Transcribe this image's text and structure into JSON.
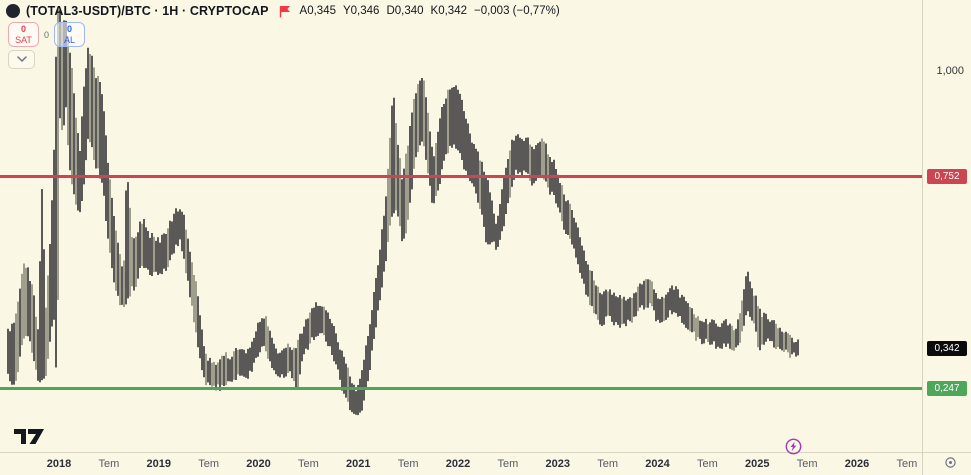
{
  "header": {
    "title": "(TOTAL3-USDT)/BTC · 1H · CRYPTOCAP",
    "logo_icon": "symbol-logo-circle",
    "flag_icon": "red-flag",
    "ohlc": [
      {
        "label": "A",
        "value": "0,345"
      },
      {
        "label": "Y",
        "value": "0,346"
      },
      {
        "label": "D",
        "value": "0,340"
      },
      {
        "label": "K",
        "value": "0,342"
      }
    ],
    "change": "−0,003 (−0,77%)"
  },
  "order_panel": {
    "sell_count": "0",
    "sell_label": "SAT",
    "spread": "0",
    "buy_count": "0",
    "buy_label": "AL",
    "collapse_icon": "chevron-down"
  },
  "price_scale": {
    "tick_label": "1,000"
  },
  "footer_icons": {
    "tradingview_logo": "tradingview-logo",
    "lightning": "lightning-bolt-circle",
    "corner": "scale-settings-target"
  },
  "colors": {
    "background": "#faf7e4",
    "candle_dark": "#16161c",
    "candle_light": "#70705f",
    "level_red": "#cb4650",
    "level_green": "#4da65a",
    "last_price_bg": "#0b0b0e",
    "sell_red": "#e8434f",
    "buy_blue": "#2962ff",
    "accent_purple": "#a03bb5",
    "flag_red": "#f23645"
  },
  "chart_data": {
    "type": "candlestick",
    "symbol": "(TOTAL3-USDT)/BTC",
    "interval": "1H",
    "exchange": "CRYPTOCAP",
    "ohlc_current": {
      "open": 0.345,
      "high": 0.346,
      "low": 0.34,
      "close": 0.342,
      "change": -0.003,
      "change_pct": "-0.77%"
    },
    "levels": [
      {
        "label": "0,752",
        "price": 0.752,
        "color_key": "level_red",
        "kind": "resistance"
      },
      {
        "label": "0,247",
        "price": 0.247,
        "color_key": "level_green",
        "kind": "support"
      }
    ],
    "last_price": {
      "label": "0,342",
      "price": 0.342
    },
    "y_axis": {
      "tick_labels": [
        {
          "label": "1,000",
          "value": 1.0
        }
      ],
      "approx_visible_range": [
        0.18,
        1.17
      ],
      "grid": false
    },
    "x_axis": {
      "unit": "decimal_year",
      "ticks": [
        {
          "label": "2018",
          "t": 2018.0,
          "major": true
        },
        {
          "label": "Tem",
          "t": 2018.5,
          "major": false
        },
        {
          "label": "2019",
          "t": 2019.0,
          "major": true
        },
        {
          "label": "Tem",
          "t": 2019.5,
          "major": false
        },
        {
          "label": "2020",
          "t": 2020.0,
          "major": true
        },
        {
          "label": "Tem",
          "t": 2020.5,
          "major": false
        },
        {
          "label": "2021",
          "t": 2021.0,
          "major": true
        },
        {
          "label": "Tem",
          "t": 2021.5,
          "major": false
        },
        {
          "label": "2022",
          "t": 2022.0,
          "major": true
        },
        {
          "label": "Tem",
          "t": 2022.5,
          "major": false
        },
        {
          "label": "2023",
          "t": 2023.0,
          "major": true
        },
        {
          "label": "Tem",
          "t": 2023.5,
          "major": false
        },
        {
          "label": "2024",
          "t": 2024.0,
          "major": true
        },
        {
          "label": "Tem",
          "t": 2024.5,
          "major": false
        },
        {
          "label": "2025",
          "t": 2025.0,
          "major": true
        },
        {
          "label": "Tem",
          "t": 2025.5,
          "major": false
        },
        {
          "label": "2026",
          "t": 2026.0,
          "major": true
        },
        {
          "label": "Tem",
          "t": 2026.5,
          "major": false
        }
      ]
    },
    "series": [
      {
        "name": "TOTAL3-USDT/BTC",
        "points_format": "[decimal_year, high_envelope, low_envelope]",
        "points": [
          [
            2017.49,
            0.386,
            0.279
          ],
          [
            2017.54,
            0.398,
            0.248
          ],
          [
            2017.59,
            0.457,
            0.291
          ],
          [
            2017.64,
            0.54,
            0.362
          ],
          [
            2017.69,
            0.529,
            0.374
          ],
          [
            2017.74,
            0.481,
            0.326
          ],
          [
            2017.79,
            0.386,
            0.26
          ],
          [
            2017.83,
            0.724,
            0.267
          ],
          [
            2017.87,
            0.433,
            0.279
          ],
          [
            2017.91,
            0.588,
            0.362
          ],
          [
            2017.95,
            0.814,
            0.41
          ],
          [
            2017.98,
            1.148,
            0.243
          ],
          [
            2018.01,
            1.143,
            0.886
          ],
          [
            2018.04,
            1.112,
            0.838
          ],
          [
            2018.07,
            1.124,
            0.921
          ],
          [
            2018.1,
            1.064,
            0.779
          ],
          [
            2018.13,
            1.005,
            0.731
          ],
          [
            2018.17,
            0.886,
            0.683
          ],
          [
            2018.21,
            0.814,
            0.66
          ],
          [
            2018.25,
            0.957,
            0.731
          ],
          [
            2018.29,
            1.057,
            0.838
          ],
          [
            2018.33,
            1.04,
            0.814
          ],
          [
            2018.37,
            0.993,
            0.779
          ],
          [
            2018.41,
            0.974,
            0.755
          ],
          [
            2018.45,
            0.91,
            0.707
          ],
          [
            2018.49,
            0.79,
            0.6
          ],
          [
            2018.53,
            0.695,
            0.529
          ],
          [
            2018.57,
            0.624,
            0.481
          ],
          [
            2018.61,
            0.564,
            0.445
          ],
          [
            2018.65,
            0.529,
            0.433
          ],
          [
            2018.68,
            0.786,
            0.457
          ],
          [
            2018.73,
            0.612,
            0.481
          ],
          [
            2018.77,
            0.6,
            0.493
          ],
          [
            2018.81,
            0.643,
            0.529
          ],
          [
            2018.86,
            0.643,
            0.533
          ],
          [
            2018.91,
            0.612,
            0.517
          ],
          [
            2018.96,
            0.607,
            0.524
          ],
          [
            2019.01,
            0.6,
            0.517
          ],
          [
            2019.06,
            0.612,
            0.529
          ],
          [
            2019.11,
            0.636,
            0.548
          ],
          [
            2019.16,
            0.667,
            0.576
          ],
          [
            2019.22,
            0.683,
            0.6
          ],
          [
            2019.27,
            0.636,
            0.529
          ],
          [
            2019.32,
            0.564,
            0.457
          ],
          [
            2019.37,
            0.505,
            0.386
          ],
          [
            2019.42,
            0.41,
            0.302
          ],
          [
            2019.47,
            0.326,
            0.262
          ],
          [
            2019.52,
            0.314,
            0.255
          ],
          [
            2019.57,
            0.31,
            0.248
          ],
          [
            2019.62,
            0.319,
            0.248
          ],
          [
            2019.67,
            0.326,
            0.26
          ],
          [
            2019.72,
            0.321,
            0.257
          ],
          [
            2019.77,
            0.338,
            0.271
          ],
          [
            2019.82,
            0.343,
            0.279
          ],
          [
            2019.87,
            0.333,
            0.267
          ],
          [
            2019.92,
            0.35,
            0.286
          ],
          [
            2019.97,
            0.386,
            0.31
          ],
          [
            2020.03,
            0.414,
            0.338
          ],
          [
            2020.06,
            0.421,
            0.35
          ],
          [
            2020.11,
            0.386,
            0.314
          ],
          [
            2020.16,
            0.35,
            0.286
          ],
          [
            2020.2,
            0.326,
            0.271
          ],
          [
            2020.25,
            0.338,
            0.279
          ],
          [
            2020.3,
            0.35,
            0.286
          ],
          [
            2020.35,
            0.343,
            0.267
          ],
          [
            2020.39,
            0.355,
            0.243
          ],
          [
            2020.44,
            0.386,
            0.31
          ],
          [
            2020.49,
            0.414,
            0.343
          ],
          [
            2020.54,
            0.438,
            0.362
          ],
          [
            2020.6,
            0.45,
            0.374
          ],
          [
            2020.65,
            0.445,
            0.369
          ],
          [
            2020.7,
            0.429,
            0.35
          ],
          [
            2020.75,
            0.398,
            0.319
          ],
          [
            2020.8,
            0.355,
            0.286
          ],
          [
            2020.85,
            0.326,
            0.231
          ],
          [
            2020.9,
            0.29,
            0.207
          ],
          [
            2020.95,
            0.255,
            0.183
          ],
          [
            2020.99,
            0.243,
            0.179
          ],
          [
            2021.03,
            0.279,
            0.193
          ],
          [
            2021.07,
            0.338,
            0.231
          ],
          [
            2021.12,
            0.41,
            0.302
          ],
          [
            2021.17,
            0.493,
            0.386
          ],
          [
            2021.22,
            0.588,
            0.457
          ],
          [
            2021.27,
            0.671,
            0.54
          ],
          [
            2021.31,
            0.814,
            0.624
          ],
          [
            2021.35,
            0.957,
            0.671
          ],
          [
            2021.39,
            0.85,
            0.66
          ],
          [
            2021.44,
            0.743,
            0.6
          ],
          [
            2021.49,
            0.814,
            0.624
          ],
          [
            2021.54,
            0.91,
            0.731
          ],
          [
            2021.59,
            0.969,
            0.814
          ],
          [
            2021.65,
            0.986,
            0.838
          ],
          [
            2021.7,
            0.91,
            0.755
          ],
          [
            2021.75,
            0.79,
            0.676
          ],
          [
            2021.8,
            0.862,
            0.712
          ],
          [
            2021.85,
            0.921,
            0.779
          ],
          [
            2021.9,
            0.957,
            0.814
          ],
          [
            2021.95,
            0.969,
            0.826
          ],
          [
            2021.99,
            0.962,
            0.814
          ],
          [
            2022.04,
            0.933,
            0.79
          ],
          [
            2022.09,
            0.886,
            0.755
          ],
          [
            2022.14,
            0.838,
            0.731
          ],
          [
            2022.19,
            0.814,
            0.707
          ],
          [
            2022.24,
            0.779,
            0.66
          ],
          [
            2022.29,
            0.755,
            0.588
          ],
          [
            2022.34,
            0.695,
            0.6
          ],
          [
            2022.39,
            0.636,
            0.581
          ],
          [
            2022.44,
            0.719,
            0.612
          ],
          [
            2022.49,
            0.79,
            0.671
          ],
          [
            2022.54,
            0.838,
            0.731
          ],
          [
            2022.59,
            0.85,
            0.767
          ],
          [
            2022.64,
            0.838,
            0.755
          ],
          [
            2022.69,
            0.843,
            0.762
          ],
          [
            2022.74,
            0.814,
            0.731
          ],
          [
            2022.79,
            0.826,
            0.743
          ],
          [
            2022.83,
            0.833,
            0.748
          ],
          [
            2022.87,
            0.838,
            0.743
          ],
          [
            2022.91,
            0.802,
            0.719
          ],
          [
            2022.95,
            0.79,
            0.707
          ],
          [
            2022.99,
            0.767,
            0.683
          ],
          [
            2023.04,
            0.731,
            0.648
          ],
          [
            2023.09,
            0.695,
            0.612
          ],
          [
            2023.14,
            0.671,
            0.588
          ],
          [
            2023.19,
            0.636,
            0.552
          ],
          [
            2023.24,
            0.588,
            0.505
          ],
          [
            2023.29,
            0.552,
            0.469
          ],
          [
            2023.34,
            0.524,
            0.445
          ],
          [
            2023.39,
            0.493,
            0.414
          ],
          [
            2023.44,
            0.469,
            0.393
          ],
          [
            2023.49,
            0.481,
            0.414
          ],
          [
            2023.54,
            0.476,
            0.41
          ],
          [
            2023.59,
            0.464,
            0.398
          ],
          [
            2023.64,
            0.46,
            0.395
          ],
          [
            2023.69,
            0.464,
            0.4
          ],
          [
            2023.74,
            0.469,
            0.41
          ],
          [
            2023.79,
            0.481,
            0.421
          ],
          [
            2023.84,
            0.498,
            0.438
          ],
          [
            2023.89,
            0.505,
            0.445
          ],
          [
            2023.94,
            0.51,
            0.45
          ],
          [
            2023.99,
            0.469,
            0.405
          ],
          [
            2024.05,
            0.46,
            0.398
          ],
          [
            2024.1,
            0.476,
            0.421
          ],
          [
            2024.15,
            0.486,
            0.429
          ],
          [
            2024.18,
            0.49,
            0.433
          ],
          [
            2024.23,
            0.469,
            0.414
          ],
          [
            2024.28,
            0.455,
            0.398
          ],
          [
            2024.33,
            0.44,
            0.386
          ],
          [
            2024.38,
            0.424,
            0.369
          ],
          [
            2024.43,
            0.414,
            0.362
          ],
          [
            2024.48,
            0.405,
            0.357
          ],
          [
            2024.53,
            0.41,
            0.357
          ],
          [
            2024.58,
            0.402,
            0.35
          ],
          [
            2024.63,
            0.398,
            0.345
          ],
          [
            2024.68,
            0.405,
            0.355
          ],
          [
            2024.73,
            0.398,
            0.345
          ],
          [
            2024.78,
            0.39,
            0.338
          ],
          [
            2024.83,
            0.433,
            0.362
          ],
          [
            2024.87,
            0.493,
            0.398
          ],
          [
            2024.9,
            0.529,
            0.433
          ],
          [
            2024.94,
            0.486,
            0.41
          ],
          [
            2024.98,
            0.469,
            0.386
          ],
          [
            2025.02,
            0.433,
            0.331
          ],
          [
            2025.06,
            0.421,
            0.35
          ],
          [
            2025.1,
            0.414,
            0.362
          ],
          [
            2025.14,
            0.41,
            0.357
          ],
          [
            2025.18,
            0.398,
            0.35
          ],
          [
            2025.22,
            0.386,
            0.343
          ],
          [
            2025.26,
            0.379,
            0.338
          ],
          [
            2025.3,
            0.371,
            0.333
          ],
          [
            2025.34,
            0.367,
            0.326
          ],
          [
            2025.38,
            0.362,
            0.324
          ],
          [
            2025.41,
            0.357,
            0.329
          ]
        ]
      }
    ]
  }
}
